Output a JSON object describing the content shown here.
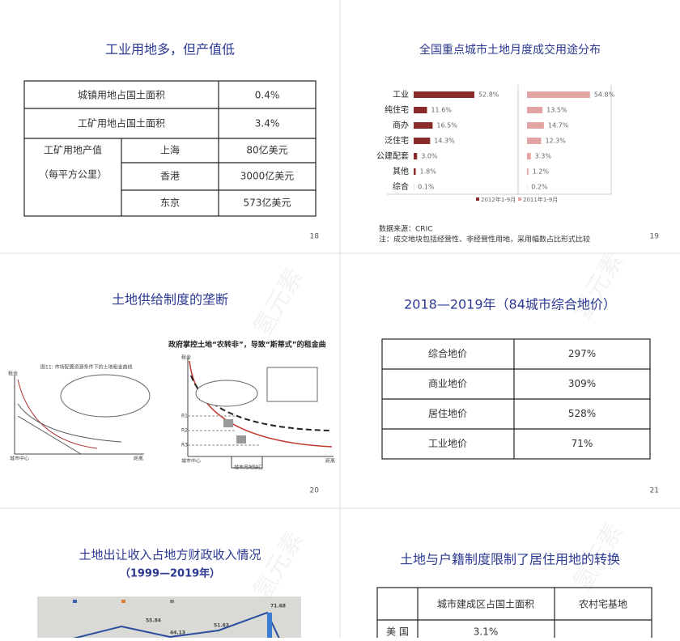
{
  "watermark": "氢元素",
  "slides": [
    {
      "title": "工业用地多，但产值低",
      "table": {
        "rows": [
          [
            "城镇用地占国土面积",
            "0.4%"
          ],
          [
            "工矿用地占国土面积",
            "3.4%"
          ]
        ],
        "group": {
          "label": "工矿用地产值",
          "sublabel": "（每平方公里）",
          "rows": [
            [
              "上海",
              "80亿美元"
            ],
            [
              "香港",
              "3000亿美元"
            ],
            [
              "东京",
              "573亿美元"
            ]
          ]
        }
      },
      "page": 18
    },
    {
      "title": "全国重点城市土地月度成交用途分布",
      "chart": {
        "type": "bar",
        "categories": [
          "工业",
          "纯住宅",
          "商办",
          "泛住宅",
          "公建配套",
          "其他",
          "综合"
        ],
        "series": [
          {
            "name": "2012年1-9月",
            "color": "#8b2a2a",
            "values": [
              52.8,
              11.6,
              16.5,
              14.3,
              3.0,
              1.8,
              0.1
            ],
            "value_labels": [
              "52.8%",
              "11.6%",
              "16.5%",
              "14.3%",
              "3.0%",
              "1.8%",
              "0.1%"
            ]
          },
          {
            "name": "2011年1-9月",
            "color": "#e3a3a3",
            "values": [
              54.8,
              13.5,
              14.7,
              12.3,
              3.3,
              1.2,
              0.2
            ],
            "value_labels": [
              "54.8%",
              "13.5%",
              "14.7%",
              "12.3%",
              "3.3%",
              "1.2%",
              "0.2%"
            ]
          }
        ]
      },
      "source": "数据来源：CRIC",
      "note": "注：成交地块包括经营性、非经营性用地，采用幅数占比形式比较",
      "page": 19
    },
    {
      "title": "土地供给制度的垄断",
      "left": {
        "caption": "图11: 市场配置资源条件下的土地租金曲线",
        "y_label": "租金",
        "x_start": "城市中心",
        "x_end": "距离"
      },
      "right": {
        "heading": "政府掌控土地“农转非”，导致“斯蒂式”的租金曲",
        "y_label": "租金",
        "levels": [
          "R1",
          "R2",
          "R3"
        ],
        "x_start": "城市中心",
        "x_end": "距离",
        "gap": "城市用地缺口"
      },
      "page": 20
    },
    {
      "title": "2018—2019年（84城市综合地价）",
      "table": [
        [
          "综合地价",
          "297%"
        ],
        [
          "商业地价",
          "309%"
        ],
        [
          "居住地价",
          "528%"
        ],
        [
          "工业地价",
          "71%"
        ]
      ],
      "page": 21
    },
    {
      "title": "土地出让收入占地方财政收入情况",
      "subtitle": "（1999—2019年）",
      "labels": [
        "55.84",
        "44.13",
        "51.63",
        "71.68"
      ]
    },
    {
      "title": "土地与户籍制度限制了居住用地的转换",
      "table": {
        "header": [
          "城市建成区占国土面积",
          "农村宅基地"
        ],
        "rows": [
          [
            "美 国",
            "3.1%"
          ]
        ]
      }
    }
  ]
}
